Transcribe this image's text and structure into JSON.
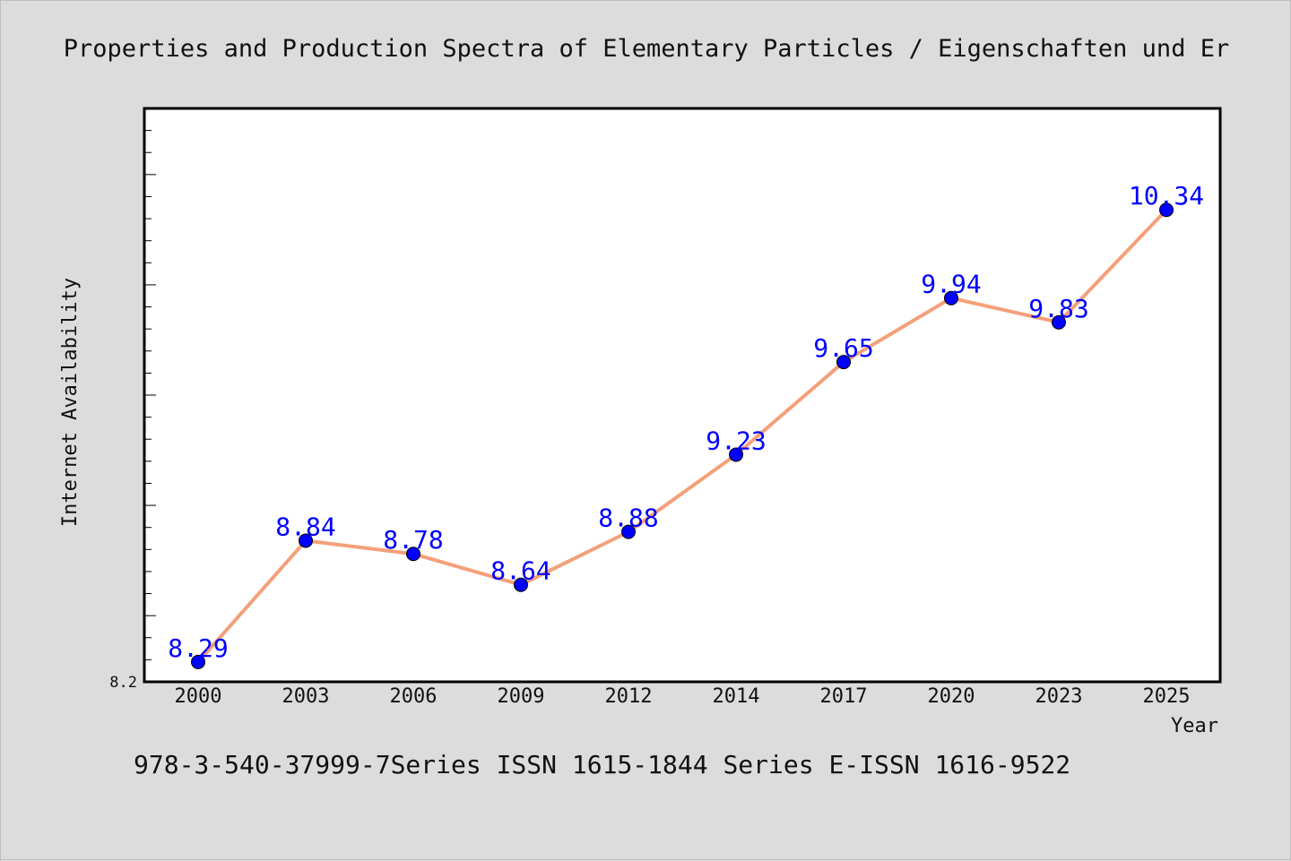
{
  "chart_data": {
    "type": "line",
    "title": "Properties and Production Spectra of Elementary Particles / Eigenschaften und Er",
    "xlabel": "Year",
    "ylabel": "Internet Availability",
    "categories": [
      "2000",
      "2003",
      "2006",
      "2009",
      "2012",
      "2014",
      "2017",
      "2020",
      "2023",
      "2025"
    ],
    "series": [
      {
        "values": [
          8.29,
          8.84,
          8.78,
          8.64,
          8.88,
          9.23,
          9.65,
          9.94,
          9.83,
          10.34
        ],
        "labels": [
          "8.29",
          "8.84",
          "8.78",
          "8.64",
          "8.88",
          "9.23",
          "9.65",
          "9.94",
          "9.83",
          "10.34"
        ],
        "line_color": "#f4a07a",
        "marker_color": "#0000ff"
      }
    ],
    "ylim": [
      8.2,
      10.8
    ],
    "yticks": [
      "8.2"
    ],
    "grid": false,
    "legend": "none",
    "footnote": "978-3-540-37999-7Series ISSN 1615-1844 Series E-ISSN 1616-9522"
  }
}
